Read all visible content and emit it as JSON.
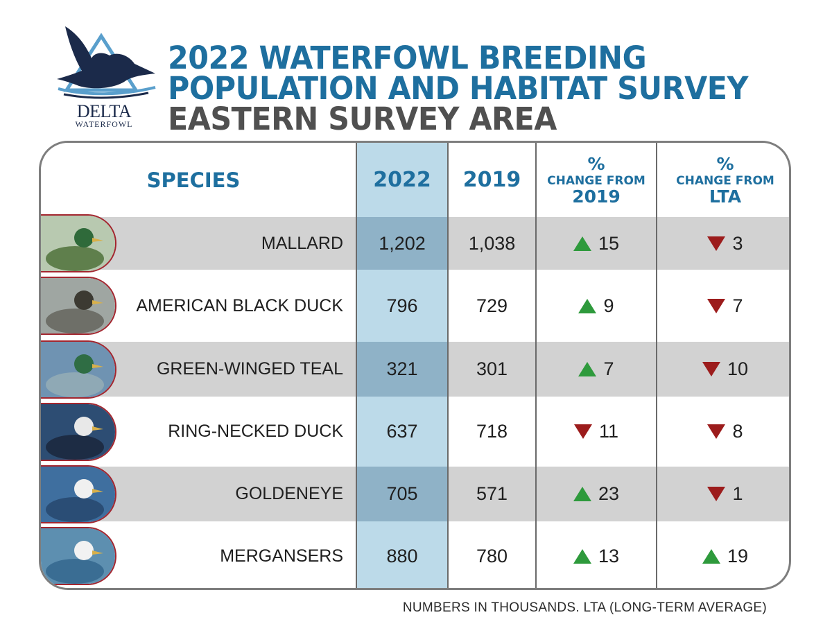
{
  "logo": {
    "name": "DELTA",
    "sub": "WATERFOWL",
    "icon": "duck-logo-icon"
  },
  "title": {
    "line1": "2022 WATERFOWL BREEDING",
    "line2": "POPULATION AND HABITAT SURVEY",
    "line3": "EASTERN SURVEY AREA"
  },
  "headers": {
    "species": "SPECIES",
    "y2022": "2022",
    "y2019": "2019",
    "chg2019": {
      "pct": "%",
      "label": "CHANGE FROM",
      "ref": "2019"
    },
    "chgLTA": {
      "pct": "%",
      "label": "CHANGE FROM",
      "ref": "LTA"
    }
  },
  "rows": [
    {
      "species": "MALLARD",
      "y2022": "1,202",
      "y2019": "1,038",
      "chg2019": "15",
      "dir2019": "up",
      "chgLTA": "3",
      "dirLTA": "down"
    },
    {
      "species": "AMERICAN BLACK DUCK",
      "y2022": "796",
      "y2019": "729",
      "chg2019": "9",
      "dir2019": "up",
      "chgLTA": "7",
      "dirLTA": "down"
    },
    {
      "species": "GREEN-WINGED TEAL",
      "y2022": "321",
      "y2019": "301",
      "chg2019": "7",
      "dir2019": "up",
      "chgLTA": "10",
      "dirLTA": "down"
    },
    {
      "species": "RING-NECKED DUCK",
      "y2022": "637",
      "y2019": "718",
      "chg2019": "11",
      "dir2019": "down",
      "chgLTA": "8",
      "dirLTA": "down"
    },
    {
      "species": "GOLDENEYE",
      "y2022": "705",
      "y2019": "571",
      "chg2019": "23",
      "dir2019": "up",
      "chgLTA": "1",
      "dirLTA": "down"
    },
    {
      "species": "MERGANSERS",
      "y2022": "880",
      "y2019": "780",
      "chg2019": "13",
      "dir2019": "up",
      "chgLTA": "19",
      "dirLTA": "up"
    }
  ],
  "footnote": "NUMBERS IN THOUSANDS. LTA (LONG-TERM AVERAGE)",
  "colors": {
    "title": "#1e6f9f",
    "subtitle": "#505050",
    "up": "#2e9a3c",
    "down": "#9c1c1c",
    "band": "#bcdae9"
  }
}
